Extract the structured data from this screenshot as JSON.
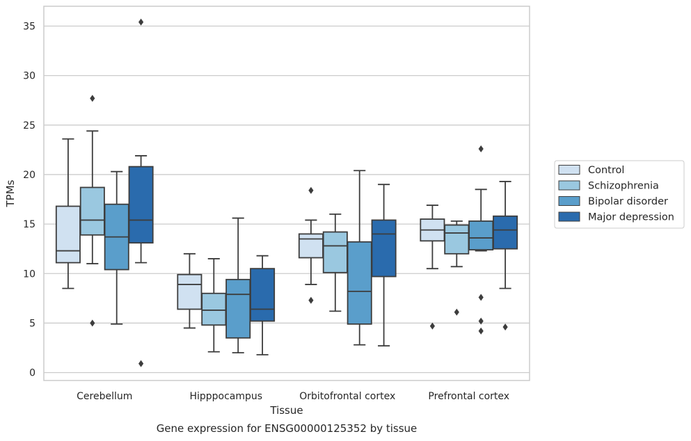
{
  "chart_data": {
    "type": "boxplot",
    "title": "Gene expression for ENSG00000125352 by tissue",
    "xlabel": "Tissue",
    "ylabel": "TPMs",
    "ylim": [
      -0.8,
      37.0
    ],
    "yticks": [
      0,
      5,
      10,
      15,
      20,
      25,
      30,
      35
    ],
    "grid": "horizontal",
    "legend_position": "right",
    "categories": [
      "Cerebellum",
      "Hipppocampus",
      "Orbitofrontal cortex",
      "Prefrontal cortex"
    ],
    "series": [
      {
        "name": "Control",
        "color": "#d0e1f1",
        "boxes": [
          {
            "whislo": 8.5,
            "q1": 11.1,
            "med": 12.3,
            "q3": 16.8,
            "whishi": 23.6,
            "fliers": []
          },
          {
            "whislo": 4.5,
            "q1": 6.4,
            "med": 8.9,
            "q3": 9.9,
            "whishi": 12.0,
            "fliers": []
          },
          {
            "whislo": 8.9,
            "q1": 11.6,
            "med": 13.5,
            "q3": 14.0,
            "whishi": 15.4,
            "fliers": [
              18.4,
              7.3
            ]
          },
          {
            "whislo": 10.5,
            "q1": 13.3,
            "med": 14.4,
            "q3": 15.5,
            "whishi": 16.9,
            "fliers": [
              4.7
            ]
          }
        ]
      },
      {
        "name": "Schizophrenia",
        "color": "#9ac8e0",
        "boxes": [
          {
            "whislo": 11.0,
            "q1": 13.9,
            "med": 15.4,
            "q3": 18.7,
            "whishi": 24.4,
            "fliers": [
              27.7,
              5.0
            ]
          },
          {
            "whislo": 2.1,
            "q1": 4.8,
            "med": 6.3,
            "q3": 8.0,
            "whishi": 11.5,
            "fliers": []
          },
          {
            "whislo": 6.2,
            "q1": 10.1,
            "med": 12.8,
            "q3": 14.2,
            "whishi": 16.0,
            "fliers": []
          },
          {
            "whislo": 10.7,
            "q1": 12.0,
            "med": 14.1,
            "q3": 14.9,
            "whishi": 15.3,
            "fliers": [
              6.1
            ]
          }
        ]
      },
      {
        "name": "Bipolar disorder",
        "color": "#5a9ecb",
        "boxes": [
          {
            "whislo": 4.9,
            "q1": 10.4,
            "med": 13.7,
            "q3": 17.0,
            "whishi": 20.3,
            "fliers": []
          },
          {
            "whislo": 2.0,
            "q1": 3.5,
            "med": 7.9,
            "q3": 9.4,
            "whishi": 15.6,
            "fliers": []
          },
          {
            "whislo": 2.8,
            "q1": 4.9,
            "med": 8.2,
            "q3": 13.2,
            "whishi": 20.4,
            "fliers": []
          },
          {
            "whislo": 12.3,
            "q1": 12.4,
            "med": 13.6,
            "q3": 15.3,
            "whishi": 18.5,
            "fliers": [
              22.6,
              7.6,
              5.2,
              4.2
            ]
          }
        ]
      },
      {
        "name": "Major depression",
        "color": "#2a6bad",
        "boxes": [
          {
            "whislo": 11.1,
            "q1": 13.1,
            "med": 15.4,
            "q3": 20.8,
            "whishi": 21.9,
            "fliers": [
              35.4,
              0.9
            ]
          },
          {
            "whislo": 1.8,
            "q1": 5.2,
            "med": 6.4,
            "q3": 10.5,
            "whishi": 11.8,
            "fliers": []
          },
          {
            "whislo": 2.7,
            "q1": 9.7,
            "med": 14.0,
            "q3": 15.4,
            "whishi": 19.0,
            "fliers": []
          },
          {
            "whislo": 8.5,
            "q1": 12.5,
            "med": 14.4,
            "q3": 15.8,
            "whishi": 19.3,
            "fliers": [
              4.6
            ]
          }
        ]
      }
    ]
  }
}
